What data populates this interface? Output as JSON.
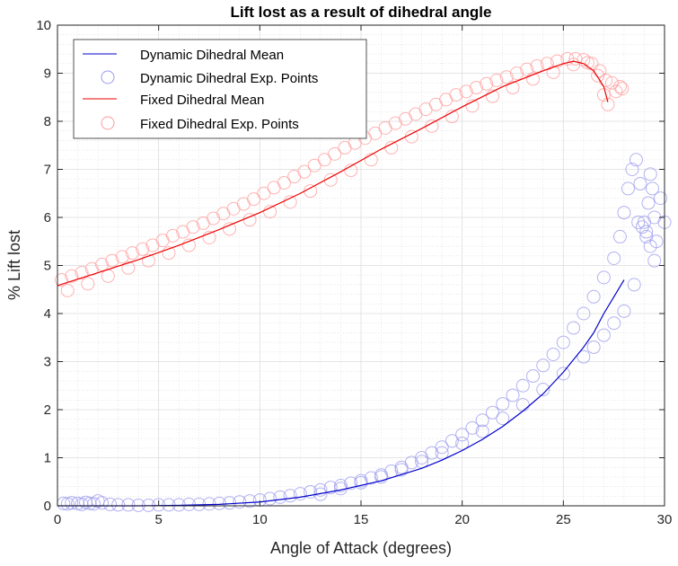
{
  "chart_data": {
    "type": "line",
    "title": "Lift lost as a result of dihedral angle",
    "xlabel": "Angle of Attack (degrees)",
    "ylabel": "% Lift lost",
    "xlim": [
      0,
      30
    ],
    "ylim": [
      0,
      10
    ],
    "xticks": [
      "0",
      "5",
      "10",
      "15",
      "20",
      "25",
      "30"
    ],
    "yticks": [
      "0",
      "1",
      "2",
      "3",
      "4",
      "5",
      "6",
      "7",
      "8",
      "9",
      "10"
    ],
    "grid": true,
    "minor_grid": true,
    "legend_position": "top-left",
    "series": [
      {
        "name": "Dynamic Dihedral Mean",
        "kind": "line",
        "color": "#0000cc",
        "x": [
          0,
          2,
          4,
          6,
          8,
          10,
          12,
          14,
          16,
          18,
          19,
          20,
          21,
          22,
          23,
          24,
          25,
          26,
          26.5,
          27,
          27.5,
          28
        ],
        "y": [
          0,
          0,
          0,
          0.01,
          0.03,
          0.08,
          0.18,
          0.33,
          0.52,
          0.78,
          0.95,
          1.15,
          1.38,
          1.65,
          1.97,
          2.33,
          2.78,
          3.3,
          3.6,
          4.0,
          4.35,
          4.7
        ]
      },
      {
        "name": "Dynamic Dihedral Exp. Points",
        "kind": "scatter",
        "color": "#9999ee",
        "x": [
          0.3,
          0.5,
          0.7,
          1.0,
          1.2,
          1.4,
          1.6,
          1.8,
          2.0,
          2.2,
          2.6,
          3.0,
          3.5,
          4.0,
          4.5,
          5.0,
          5.5,
          6.0,
          6.5,
          7.0,
          7.5,
          8.0,
          8.5,
          9.0,
          9.5,
          10.0,
          10.5,
          11.0,
          11.5,
          12.0,
          12.5,
          13.0,
          13.5,
          14.0,
          14.5,
          15.0,
          15.5,
          16.0,
          16.5,
          17.0,
          17.5,
          18.0,
          18.5,
          19.0,
          19.5,
          20.0,
          20.5,
          21.0,
          21.5,
          22.0,
          22.5,
          23.0,
          23.5,
          24.0,
          24.5,
          25.0,
          25.5,
          26.0,
          26.5,
          27.0,
          27.5,
          27.8,
          28.0,
          28.2,
          28.4,
          28.6,
          28.8,
          29.0,
          29.1,
          29.2,
          29.3,
          29.4,
          29.5,
          29.6,
          29.8,
          30.0,
          13.0,
          14.0,
          15.0,
          16.0,
          17.0,
          18.0,
          19.0,
          20.0,
          21.0,
          22.0,
          23.0,
          24.0,
          25.0,
          26.0,
          26.5,
          27.0,
          27.5,
          28.0,
          28.5,
          28.7,
          28.9,
          29.1,
          29.3,
          29.5
        ],
        "y": [
          0.05,
          0.04,
          0.06,
          0.05,
          0.03,
          0.07,
          0.05,
          0.04,
          0.1,
          0.06,
          0.03,
          0.02,
          0.02,
          0.01,
          0.01,
          0.02,
          0.02,
          0.02,
          0.03,
          0.03,
          0.04,
          0.05,
          0.06,
          0.08,
          0.1,
          0.12,
          0.15,
          0.18,
          0.21,
          0.25,
          0.29,
          0.33,
          0.38,
          0.42,
          0.47,
          0.52,
          0.58,
          0.64,
          0.72,
          0.8,
          0.9,
          1.0,
          1.1,
          1.22,
          1.35,
          1.48,
          1.62,
          1.78,
          1.94,
          2.12,
          2.3,
          2.5,
          2.7,
          2.92,
          3.15,
          3.4,
          3.7,
          4.0,
          4.35,
          4.75,
          5.15,
          5.6,
          6.1,
          6.6,
          7.0,
          7.2,
          6.7,
          5.9,
          5.6,
          6.3,
          6.9,
          6.6,
          6.0,
          5.5,
          6.4,
          5.9,
          0.24,
          0.36,
          0.48,
          0.6,
          0.75,
          0.92,
          1.1,
          1.3,
          1.55,
          1.82,
          2.1,
          2.42,
          2.75,
          3.1,
          3.3,
          3.55,
          3.8,
          4.05,
          4.6,
          5.9,
          5.8,
          5.7,
          5.4,
          5.1
        ]
      },
      {
        "name": "Fixed Dihedral Mean",
        "kind": "line",
        "color": "#ee0000",
        "x": [
          0,
          2,
          4,
          6,
          8,
          10,
          12,
          14,
          16,
          18,
          20,
          22,
          24,
          25,
          25.5,
          26,
          26.5,
          27,
          27.2
        ],
        "y": [
          4.58,
          4.85,
          5.12,
          5.42,
          5.75,
          6.1,
          6.5,
          6.95,
          7.42,
          7.85,
          8.3,
          8.72,
          9.05,
          9.2,
          9.25,
          9.2,
          9.05,
          8.72,
          8.4
        ]
      },
      {
        "name": "Fixed Dihedral Exp. Points",
        "kind": "scatter",
        "color": "#ff9999",
        "x": [
          0.2,
          0.7,
          1.2,
          1.7,
          2.2,
          2.7,
          3.2,
          3.7,
          4.2,
          4.7,
          5.2,
          5.7,
          6.2,
          6.7,
          7.2,
          7.7,
          8.2,
          8.7,
          9.2,
          9.7,
          10.2,
          10.7,
          11.2,
          11.7,
          12.2,
          12.7,
          13.2,
          13.7,
          14.2,
          14.7,
          15.2,
          15.7,
          16.2,
          16.7,
          17.2,
          17.7,
          18.2,
          18.7,
          19.2,
          19.7,
          20.2,
          20.7,
          21.2,
          21.7,
          22.2,
          22.7,
          23.2,
          23.7,
          24.2,
          24.7,
          25.2,
          25.6,
          26.0,
          26.4,
          26.8,
          27.1,
          27.4,
          27.8,
          0.5,
          1.5,
          2.5,
          3.5,
          4.5,
          5.5,
          6.5,
          7.5,
          8.5,
          9.5,
          10.5,
          11.5,
          12.5,
          13.5,
          14.5,
          15.5,
          16.5,
          17.5,
          18.5,
          19.5,
          20.5,
          21.5,
          22.5,
          23.5,
          24.5,
          25.5,
          26.2,
          26.7,
          27.0,
          27.2,
          27.6,
          27.9
        ],
        "y": [
          4.7,
          4.78,
          4.85,
          4.93,
          5.02,
          5.1,
          5.18,
          5.26,
          5.34,
          5.42,
          5.52,
          5.62,
          5.7,
          5.8,
          5.88,
          5.98,
          6.08,
          6.18,
          6.28,
          6.38,
          6.5,
          6.62,
          6.72,
          6.85,
          6.95,
          7.08,
          7.2,
          7.32,
          7.45,
          7.55,
          7.65,
          7.75,
          7.86,
          7.96,
          8.05,
          8.15,
          8.25,
          8.35,
          8.45,
          8.55,
          8.62,
          8.7,
          8.78,
          8.85,
          8.92,
          9.0,
          9.08,
          9.15,
          9.2,
          9.25,
          9.3,
          9.3,
          9.28,
          9.2,
          9.05,
          8.85,
          8.8,
          8.72,
          4.48,
          4.62,
          4.78,
          4.95,
          5.1,
          5.26,
          5.42,
          5.58,
          5.76,
          5.95,
          6.12,
          6.32,
          6.55,
          6.78,
          6.98,
          7.2,
          7.45,
          7.68,
          7.9,
          8.1,
          8.32,
          8.52,
          8.7,
          8.88,
          9.02,
          9.18,
          9.22,
          8.95,
          8.55,
          8.35,
          8.62,
          8.68
        ]
      }
    ]
  }
}
